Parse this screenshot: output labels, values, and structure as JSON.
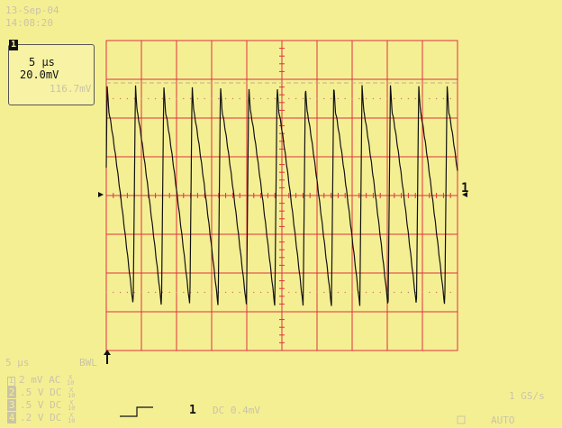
{
  "timestamp": {
    "date": "13-Sep-04",
    "time": "14:08:20"
  },
  "channel_box": {
    "channel": "1",
    "timebase": "5 μs",
    "volts_per_div": "20.0mV",
    "offset": "116.7mV"
  },
  "bottom_status": {
    "timebase": "5 μs",
    "bandwidth_limit": "BWL",
    "sample_rate": "1 GS/s",
    "trigger_mode": "AUTO",
    "trigger_channel": "1",
    "trigger_level": "DC 0.4mV"
  },
  "channels": [
    {
      "num": "1",
      "scale": "2 mV",
      "coupling": "AC",
      "probe_top": "X",
      "probe_bottom": "10"
    },
    {
      "num": "2",
      "scale": ".5  V",
      "coupling": "DC",
      "probe_top": "X",
      "probe_bottom": "10"
    },
    {
      "num": "3",
      "scale": ".5  V",
      "coupling": "DC",
      "probe_top": "X",
      "probe_bottom": "10"
    },
    {
      "num": "4",
      "scale": ".2  V",
      "coupling": "DC",
      "probe_top": "X",
      "probe_bottom": "10"
    }
  ],
  "markers": {
    "channel_right": "1"
  },
  "colors": {
    "background": "#f5ef94",
    "grid": "#e0323c",
    "trace": "#111111",
    "dim_text": "#c9c4a6"
  }
}
